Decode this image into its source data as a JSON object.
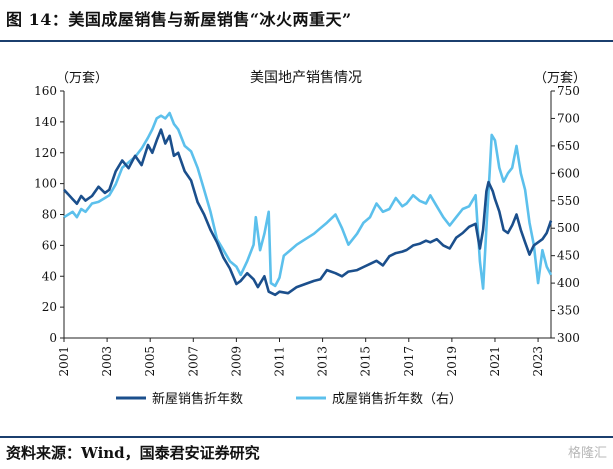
{
  "figure_title": "图 14：美国成屋销售与新屋销售“冰火两重天”",
  "source_text": "资料来源：Wind，国泰君安证券研究",
  "watermark": "格隆汇",
  "chart_data": {
    "type": "line",
    "title": "美国地产销售情况",
    "left_unit": "（万套）",
    "right_unit": "（万套）",
    "x_ticks": [
      "2001",
      "2003",
      "2005",
      "2007",
      "2009",
      "2011",
      "2013",
      "2015",
      "2017",
      "2019",
      "2021",
      "2023"
    ],
    "xlim": [
      2001,
      2023.6
    ],
    "ylim_left": [
      0,
      160
    ],
    "yticks_left": [
      0,
      20,
      40,
      60,
      80,
      100,
      120,
      140,
      160
    ],
    "ylim_right": [
      300,
      750
    ],
    "yticks_right": [
      300,
      350,
      400,
      450,
      500,
      550,
      600,
      650,
      700,
      750
    ],
    "grid": false,
    "legend_position": "bottom",
    "colors": {
      "new_home": "#1b4f8c",
      "existing_home": "#5cc0ec"
    },
    "series": [
      {
        "name": "新屋销售折年数",
        "axis": "left",
        "points": [
          [
            2001.0,
            96
          ],
          [
            2001.2,
            93
          ],
          [
            2001.4,
            90
          ],
          [
            2001.6,
            87
          ],
          [
            2001.8,
            92
          ],
          [
            2002.0,
            89
          ],
          [
            2002.3,
            92
          ],
          [
            2002.6,
            98
          ],
          [
            2002.9,
            94
          ],
          [
            2003.1,
            96
          ],
          [
            2003.4,
            108
          ],
          [
            2003.7,
            115
          ],
          [
            2004.0,
            110
          ],
          [
            2004.3,
            118
          ],
          [
            2004.6,
            112
          ],
          [
            2004.9,
            125
          ],
          [
            2005.1,
            120
          ],
          [
            2005.3,
            128
          ],
          [
            2005.5,
            135
          ],
          [
            2005.7,
            126
          ],
          [
            2005.9,
            131
          ],
          [
            2006.1,
            118
          ],
          [
            2006.3,
            120
          ],
          [
            2006.6,
            108
          ],
          [
            2006.9,
            102
          ],
          [
            2007.2,
            88
          ],
          [
            2007.5,
            80
          ],
          [
            2007.8,
            70
          ],
          [
            2008.1,
            62
          ],
          [
            2008.4,
            52
          ],
          [
            2008.7,
            45
          ],
          [
            2009.0,
            35
          ],
          [
            2009.2,
            37
          ],
          [
            2009.5,
            42
          ],
          [
            2009.8,
            38
          ],
          [
            2010.0,
            33
          ],
          [
            2010.3,
            40
          ],
          [
            2010.5,
            30
          ],
          [
            2010.8,
            28
          ],
          [
            2011.0,
            30
          ],
          [
            2011.4,
            29
          ],
          [
            2011.8,
            33
          ],
          [
            2012.2,
            35
          ],
          [
            2012.6,
            37
          ],
          [
            2012.9,
            38
          ],
          [
            2013.2,
            44
          ],
          [
            2013.6,
            42
          ],
          [
            2013.9,
            40
          ],
          [
            2014.2,
            43
          ],
          [
            2014.6,
            44
          ],
          [
            2014.9,
            46
          ],
          [
            2015.2,
            48
          ],
          [
            2015.5,
            50
          ],
          [
            2015.8,
            47
          ],
          [
            2016.1,
            53
          ],
          [
            2016.4,
            55
          ],
          [
            2016.7,
            56
          ],
          [
            2016.9,
            57
          ],
          [
            2017.2,
            60
          ],
          [
            2017.5,
            61
          ],
          [
            2017.8,
            63
          ],
          [
            2018.0,
            62
          ],
          [
            2018.3,
            64
          ],
          [
            2018.6,
            60
          ],
          [
            2018.9,
            58
          ],
          [
            2019.2,
            65
          ],
          [
            2019.5,
            68
          ],
          [
            2019.8,
            72
          ],
          [
            2020.1,
            74
          ],
          [
            2020.3,
            58
          ],
          [
            2020.45,
            70
          ],
          [
            2020.6,
            95
          ],
          [
            2020.7,
            101
          ],
          [
            2020.9,
            95
          ],
          [
            2021.0,
            90
          ],
          [
            2021.2,
            82
          ],
          [
            2021.4,
            70
          ],
          [
            2021.6,
            68
          ],
          [
            2021.8,
            73
          ],
          [
            2022.0,
            80
          ],
          [
            2022.2,
            70
          ],
          [
            2022.4,
            62
          ],
          [
            2022.6,
            54
          ],
          [
            2022.8,
            60
          ],
          [
            2023.0,
            62
          ],
          [
            2023.2,
            64
          ],
          [
            2023.4,
            68
          ],
          [
            2023.6,
            76
          ]
        ]
      },
      {
        "name": "成屋销售折年数（右）",
        "axis": "right",
        "points": [
          [
            2001.0,
            520
          ],
          [
            2001.2,
            525
          ],
          [
            2001.4,
            530
          ],
          [
            2001.6,
            520
          ],
          [
            2001.8,
            535
          ],
          [
            2002.0,
            530
          ],
          [
            2002.3,
            545
          ],
          [
            2002.6,
            548
          ],
          [
            2002.9,
            555
          ],
          [
            2003.1,
            560
          ],
          [
            2003.4,
            580
          ],
          [
            2003.7,
            610
          ],
          [
            2004.0,
            620
          ],
          [
            2004.3,
            630
          ],
          [
            2004.6,
            645
          ],
          [
            2004.9,
            665
          ],
          [
            2005.1,
            680
          ],
          [
            2005.3,
            700
          ],
          [
            2005.5,
            705
          ],
          [
            2005.7,
            700
          ],
          [
            2005.9,
            710
          ],
          [
            2006.1,
            690
          ],
          [
            2006.3,
            680
          ],
          [
            2006.6,
            650
          ],
          [
            2006.9,
            640
          ],
          [
            2007.2,
            610
          ],
          [
            2007.5,
            570
          ],
          [
            2007.8,
            530
          ],
          [
            2008.1,
            480
          ],
          [
            2008.4,
            460
          ],
          [
            2008.7,
            440
          ],
          [
            2009.0,
            430
          ],
          [
            2009.2,
            415
          ],
          [
            2009.5,
            440
          ],
          [
            2009.8,
            470
          ],
          [
            2009.9,
            520
          ],
          [
            2010.1,
            460
          ],
          [
            2010.3,
            490
          ],
          [
            2010.5,
            530
          ],
          [
            2010.6,
            400
          ],
          [
            2010.8,
            395
          ],
          [
            2011.0,
            410
          ],
          [
            2011.2,
            450
          ],
          [
            2011.5,
            460
          ],
          [
            2011.8,
            470
          ],
          [
            2012.2,
            480
          ],
          [
            2012.6,
            490
          ],
          [
            2012.9,
            500
          ],
          [
            2013.2,
            510
          ],
          [
            2013.6,
            525
          ],
          [
            2013.9,
            500
          ],
          [
            2014.2,
            470
          ],
          [
            2014.6,
            490
          ],
          [
            2014.9,
            510
          ],
          [
            2015.2,
            520
          ],
          [
            2015.5,
            545
          ],
          [
            2015.8,
            530
          ],
          [
            2016.1,
            535
          ],
          [
            2016.4,
            555
          ],
          [
            2016.7,
            540
          ],
          [
            2016.9,
            545
          ],
          [
            2017.2,
            560
          ],
          [
            2017.5,
            550
          ],
          [
            2017.8,
            545
          ],
          [
            2018.0,
            560
          ],
          [
            2018.3,
            540
          ],
          [
            2018.6,
            520
          ],
          [
            2018.9,
            505
          ],
          [
            2019.2,
            520
          ],
          [
            2019.5,
            535
          ],
          [
            2019.8,
            540
          ],
          [
            2020.1,
            560
          ],
          [
            2020.3,
            440
          ],
          [
            2020.45,
            390
          ],
          [
            2020.6,
            500
          ],
          [
            2020.75,
            600
          ],
          [
            2020.85,
            670
          ],
          [
            2021.0,
            660
          ],
          [
            2021.2,
            610
          ],
          [
            2021.4,
            585
          ],
          [
            2021.6,
            600
          ],
          [
            2021.8,
            610
          ],
          [
            2022.0,
            650
          ],
          [
            2022.2,
            600
          ],
          [
            2022.4,
            570
          ],
          [
            2022.6,
            510
          ],
          [
            2022.8,
            470
          ],
          [
            2023.0,
            400
          ],
          [
            2023.2,
            460
          ],
          [
            2023.4,
            430
          ],
          [
            2023.6,
            415
          ]
        ]
      }
    ]
  }
}
